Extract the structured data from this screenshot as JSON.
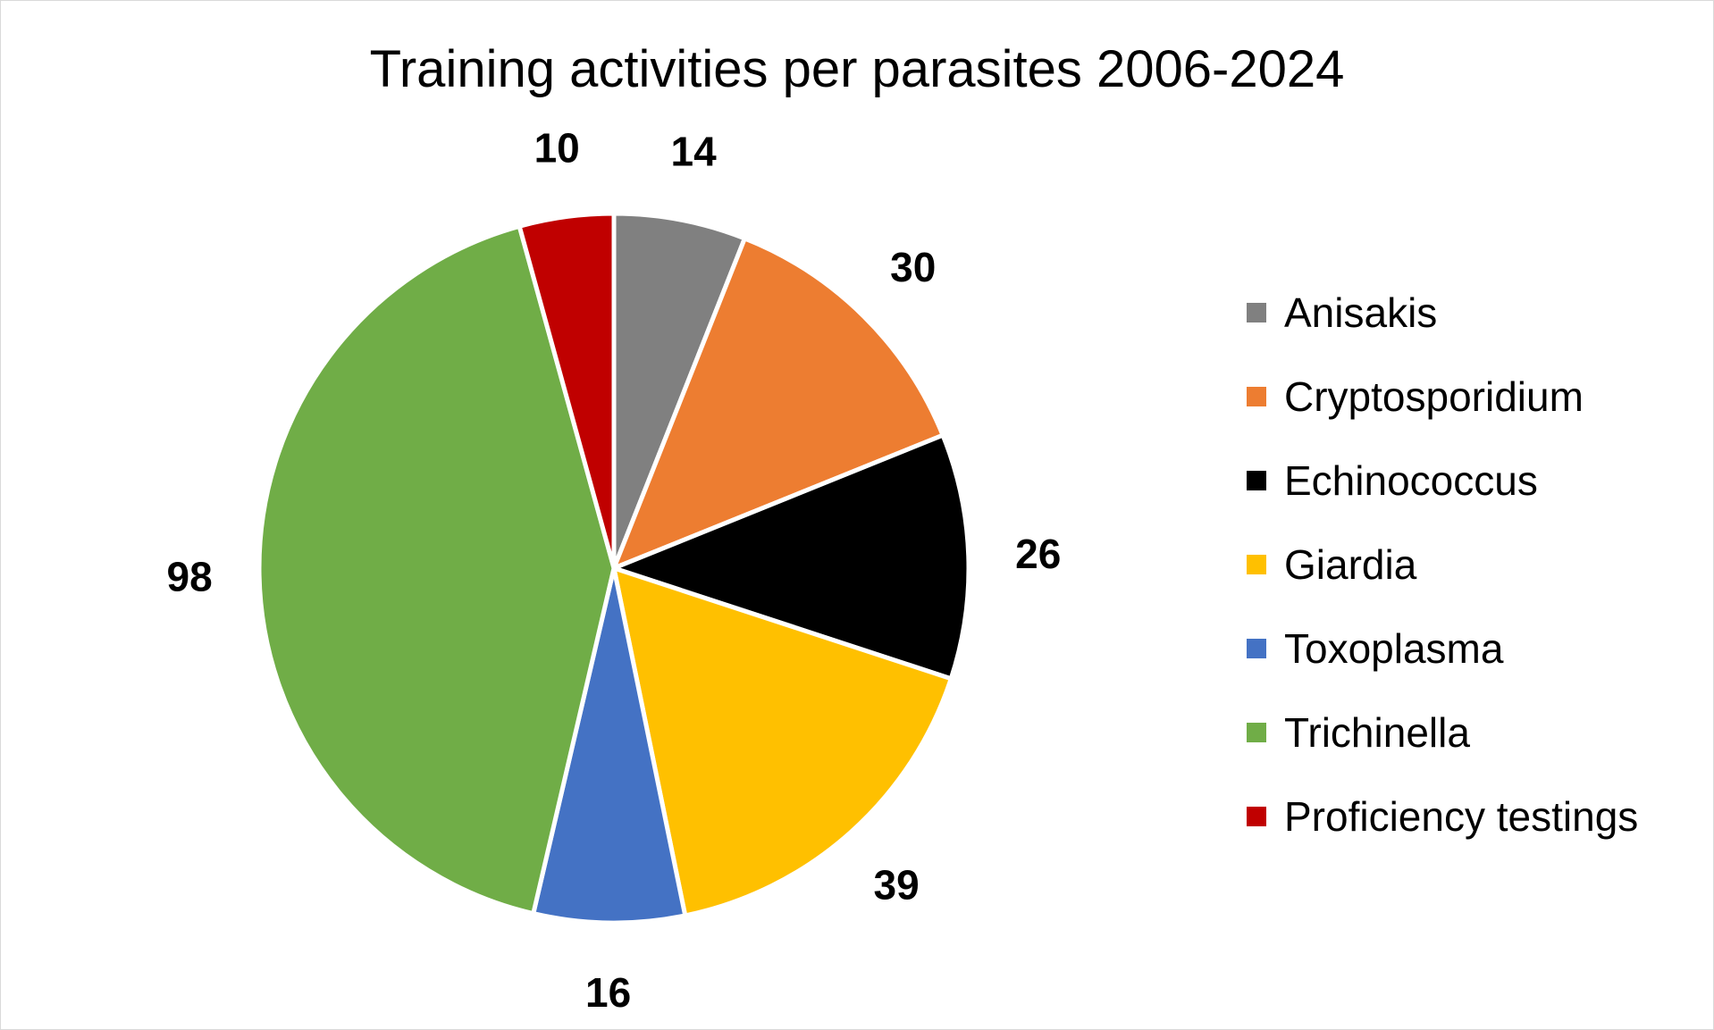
{
  "chart_data": {
    "type": "pie",
    "title": "Training activities per parasites 2006-2024",
    "categories": [
      "Anisakis",
      "Cryptosporidium",
      "Echinococcus",
      "Giardia",
      "Toxoplasma",
      "Trichinella",
      "Proficiency testings"
    ],
    "values": [
      14,
      30,
      26,
      39,
      16,
      98,
      10
    ],
    "colors": [
      "#808080",
      "#ed7d31",
      "#000000",
      "#ffc000",
      "#4472c4",
      "#70ad47",
      "#c00000"
    ],
    "legend_position": "right",
    "data_labels": true
  }
}
